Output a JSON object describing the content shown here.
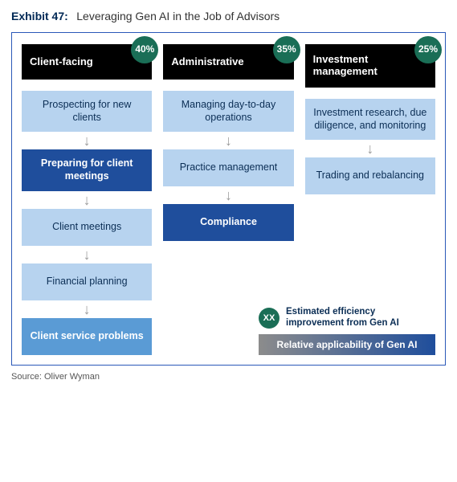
{
  "exhibit": {
    "number": "Exhibit 47:",
    "title": "Leveraging Gen AI in the Job of Advisors"
  },
  "palette": {
    "light_blue": "#b7d3ef",
    "mid_blue": "#5a9bd5",
    "dark_blue": "#1f4e9c",
    "text_on_light": "#0b2e55",
    "text_on_dark": "#ffffff",
    "gradient_start": "#8c8c8c",
    "gradient_end": "#1f4e9c"
  },
  "columns": [
    {
      "header": "Client-facing",
      "percent": "40%",
      "nodes": [
        {
          "label": "Prospecting for new clients",
          "shade": "light"
        },
        {
          "label": "Preparing for client meetings",
          "shade": "dark"
        },
        {
          "label": "Client meetings",
          "shade": "light"
        },
        {
          "label": "Financial planning",
          "shade": "light"
        },
        {
          "label": "Client service problems",
          "shade": "mid"
        }
      ]
    },
    {
      "header": "Administrative",
      "percent": "35%",
      "nodes": [
        {
          "label": "Managing day-to-day operations",
          "shade": "light"
        },
        {
          "label": "Practice management",
          "shade": "light"
        },
        {
          "label": "Compliance",
          "shade": "dark"
        }
      ]
    },
    {
      "header": "Investment management",
      "percent": "25%",
      "nodes": [
        {
          "label": "Investment research, due diligence, and monitoring",
          "shade": "light"
        },
        {
          "label": "Trading and rebalancing",
          "shade": "light"
        }
      ]
    }
  ],
  "legend": {
    "badge": "XX",
    "line1": "Estimated efficiency improvement from Gen AI",
    "line2": "Relative applicability of Gen AI"
  },
  "source": "Source: Oliver Wyman"
}
